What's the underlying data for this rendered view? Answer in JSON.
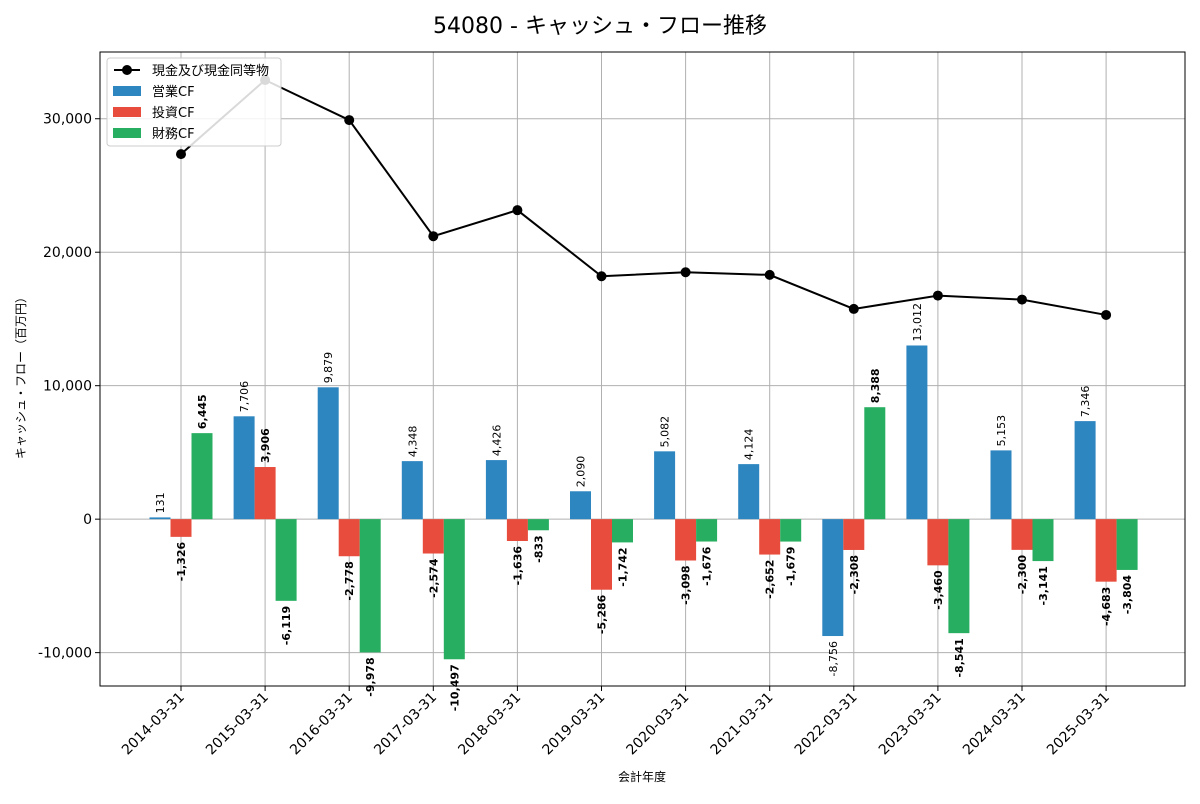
{
  "chart_data": {
    "type": "bar",
    "title": "54080 - キャッシュ・フロー推移",
    "xlabel": "会計年度",
    "ylabel": "キャッシュ・フロー（百万円）",
    "ylim": [
      -12500,
      35000
    ],
    "yticks": [
      -10000,
      0,
      10000,
      20000,
      30000
    ],
    "ytick_labels": [
      "-10,000",
      "0",
      "10,000",
      "20,000",
      "30,000"
    ],
    "grid": true,
    "legend_position": "top-left",
    "categories": [
      "2014-03-31",
      "2015-03-31",
      "2016-03-31",
      "2017-03-31",
      "2018-03-31",
      "2019-03-31",
      "2020-03-31",
      "2021-03-31",
      "2022-03-31",
      "2023-03-31",
      "2024-03-31",
      "2025-03-31"
    ],
    "series": [
      {
        "name": "営業CF",
        "type": "bar",
        "color": "#2e86c1",
        "values": [
          131,
          7706,
          9879,
          4348,
          4426,
          2090,
          5082,
          4124,
          -8756,
          13012,
          5153,
          7346
        ],
        "labels": [
          "131",
          "7,706",
          "9,879",
          "4,348",
          "4,426",
          "2,090",
          "5,082",
          "4,124",
          "-8,756",
          "13,012",
          "5,153",
          "7,346"
        ]
      },
      {
        "name": "投資CF",
        "type": "bar",
        "color": "#e74c3c",
        "values": [
          -1326,
          3906,
          -2778,
          -2574,
          -1636,
          -5286,
          -3098,
          -2652,
          -2308,
          -3460,
          -2300,
          -4683
        ],
        "labels": [
          "-1,326",
          "3,906",
          "-2,778",
          "-2,574",
          "-1,636",
          "-5,286",
          "-3,098",
          "-2,652",
          "-2,308",
          "-3,460",
          "-2,300",
          "-4,683"
        ]
      },
      {
        "name": "財務CF",
        "type": "bar",
        "color": "#27ae60",
        "values": [
          6445,
          -6119,
          -9978,
          -10497,
          -833,
          -1742,
          -1676,
          -1679,
          8388,
          -8541,
          -3141,
          -3804
        ],
        "labels": [
          "6,445",
          "-6,119",
          "-9,978",
          "-10,497",
          "-833",
          "-1,742",
          "-1,676",
          "-1,679",
          "8,388",
          "-8,541",
          "-3,141",
          "-3,804"
        ]
      },
      {
        "name": "現金及び現金同等物",
        "type": "line",
        "color": "#000000",
        "values": [
          27350,
          32900,
          29900,
          21200,
          23150,
          18200,
          18500,
          18300,
          15750,
          16750,
          16450,
          15300
        ]
      }
    ]
  }
}
